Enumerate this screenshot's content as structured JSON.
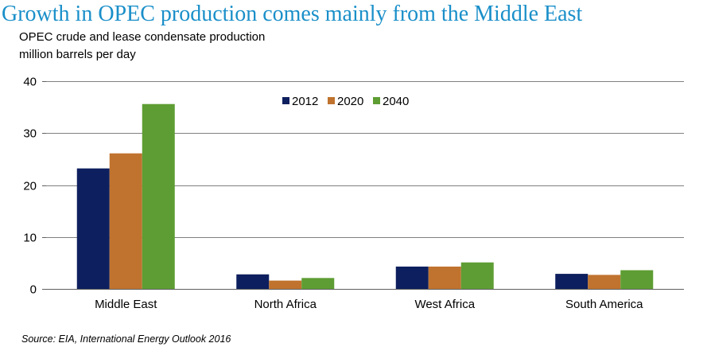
{
  "header": {
    "title": "Growth in OPEC production comes mainly from the Middle East",
    "subtitle_line1": "OPEC crude and lease condensate production",
    "subtitle_line2": "million barrels per day"
  },
  "footer": {
    "source": "Source:  EIA, International Energy Outlook 2016"
  },
  "colors": {
    "title": "#1a8fc9",
    "series_2012": "#0d1f5e",
    "series_2020": "#c0732e",
    "series_2040": "#5e9d33",
    "grid": "#808080"
  },
  "chart_data": {
    "type": "bar",
    "title": "",
    "xlabel": "",
    "ylabel": "",
    "categories": [
      "Middle East",
      "North Africa",
      "West Africa",
      "South America"
    ],
    "series": [
      {
        "name": "2012",
        "color": "#0d1f5e",
        "values": [
          23.2,
          2.8,
          4.3,
          2.9
        ]
      },
      {
        "name": "2020",
        "color": "#c0732e",
        "values": [
          26.1,
          1.6,
          4.3,
          2.7
        ]
      },
      {
        "name": "2040",
        "color": "#5e9d33",
        "values": [
          35.6,
          2.1,
          5.1,
          3.6
        ]
      }
    ],
    "ylim": [
      0,
      40
    ],
    "yticks": [
      0,
      10,
      20,
      30,
      40
    ],
    "grid": true,
    "legend_position": "top-center"
  }
}
